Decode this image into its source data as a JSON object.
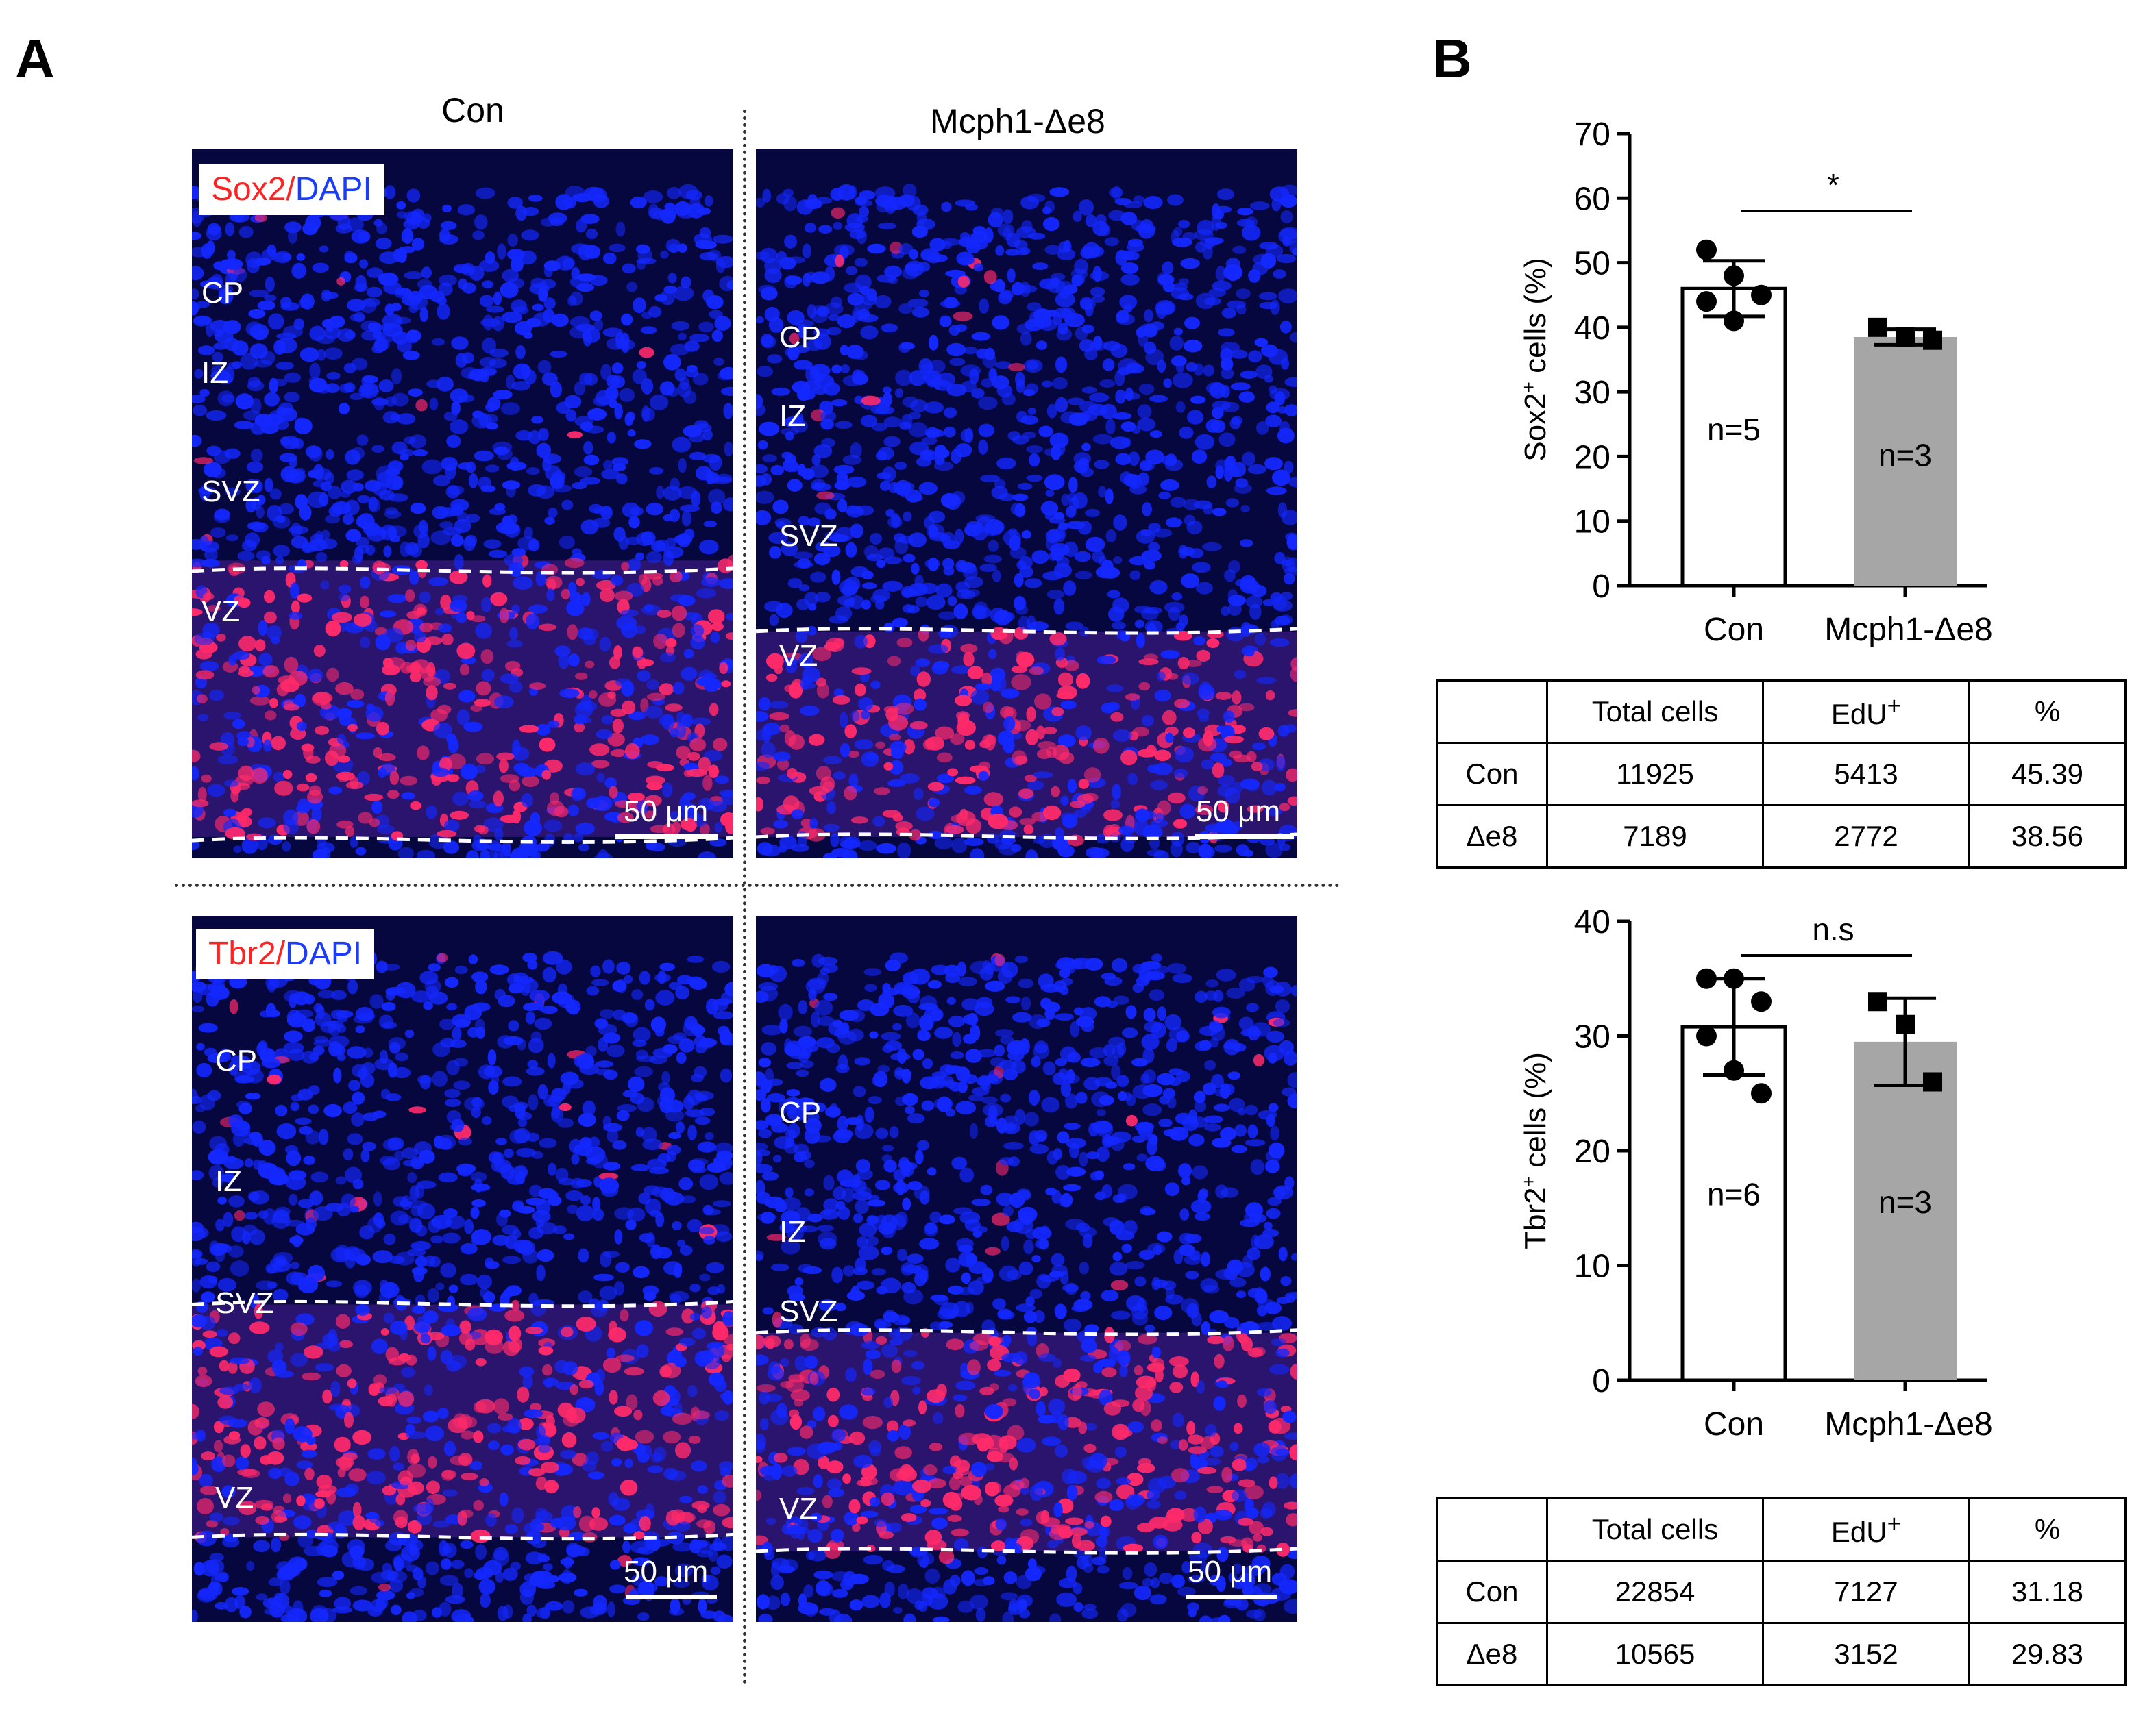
{
  "panels": {
    "a": "A",
    "b": "B"
  },
  "column_titles": {
    "con": "Con",
    "mutant": "Mcph1-Δe8"
  },
  "images": {
    "top": {
      "stain_red": "Sox2",
      "stain_sep": "/",
      "stain_blue": "DAPI",
      "con_zones": [
        "CP",
        "IZ",
        "SVZ",
        "VZ"
      ],
      "mut_zones": [
        "CP",
        "IZ",
        "SVZ",
        "VZ"
      ],
      "scale": "50 μm"
    },
    "bottom": {
      "stain_red": "Tbr2",
      "stain_sep": "/",
      "stain_blue": "DAPI",
      "con_zones": [
        "CP",
        "IZ",
        "SVZ",
        "VZ"
      ],
      "mut_zones": [
        "CP",
        "IZ",
        "SVZ",
        "VZ"
      ],
      "scale": "50 μm"
    }
  },
  "colors": {
    "bar_con": "#ffffff",
    "bar_mut": "#a6a6a6",
    "dapi": "#1428ff",
    "marker": "#ff2a6a"
  },
  "chart_data": [
    {
      "type": "bar",
      "categories": [
        "Con",
        "Mcph1-Δe8"
      ],
      "values": [
        46,
        38.5
      ],
      "errors": [
        4.3,
        1.2
      ],
      "points": [
        [
          52,
          48,
          45,
          44,
          41
        ],
        [
          40,
          38.5,
          38
        ]
      ],
      "markers": [
        "circle",
        "square"
      ],
      "n_labels": [
        "n=5",
        "n=3"
      ],
      "ylabel_main": "Sox2",
      "ylabel_sup": "+",
      "ylabel_rest": " cells (%)",
      "yticks": [
        0,
        10,
        20,
        30,
        40,
        50,
        60,
        70
      ],
      "ylim": [
        0,
        70
      ],
      "significance": "*"
    },
    {
      "type": "bar",
      "categories": [
        "Con",
        "Mcph1-Δe8"
      ],
      "values": [
        30.8,
        29.5
      ],
      "errors": [
        4.2,
        3.8
      ],
      "points": [
        [
          35,
          35,
          33,
          30,
          27,
          25
        ],
        [
          33,
          31,
          26
        ]
      ],
      "markers": [
        "circle",
        "square"
      ],
      "n_labels": [
        "n=6",
        "n=3"
      ],
      "ylabel_main": "Tbr2",
      "ylabel_sup": "+",
      "ylabel_rest": " cells (%)",
      "yticks": [
        0,
        10,
        20,
        30,
        40
      ],
      "ylim": [
        0,
        40
      ],
      "significance": "n.s"
    }
  ],
  "tables": [
    {
      "headers": [
        "",
        "Total cells",
        "EdU",
        "%"
      ],
      "edu_sup": "+",
      "rows": [
        [
          "Con",
          "11925",
          "5413",
          "45.39"
        ],
        [
          "Δe8",
          "7189",
          "2772",
          "38.56"
        ]
      ]
    },
    {
      "headers": [
        "",
        "Total cells",
        "EdU",
        "%"
      ],
      "edu_sup": "+",
      "rows": [
        [
          "Con",
          "22854",
          "7127",
          "31.18"
        ],
        [
          "Δe8",
          "10565",
          "3152",
          "29.83"
        ]
      ]
    }
  ]
}
